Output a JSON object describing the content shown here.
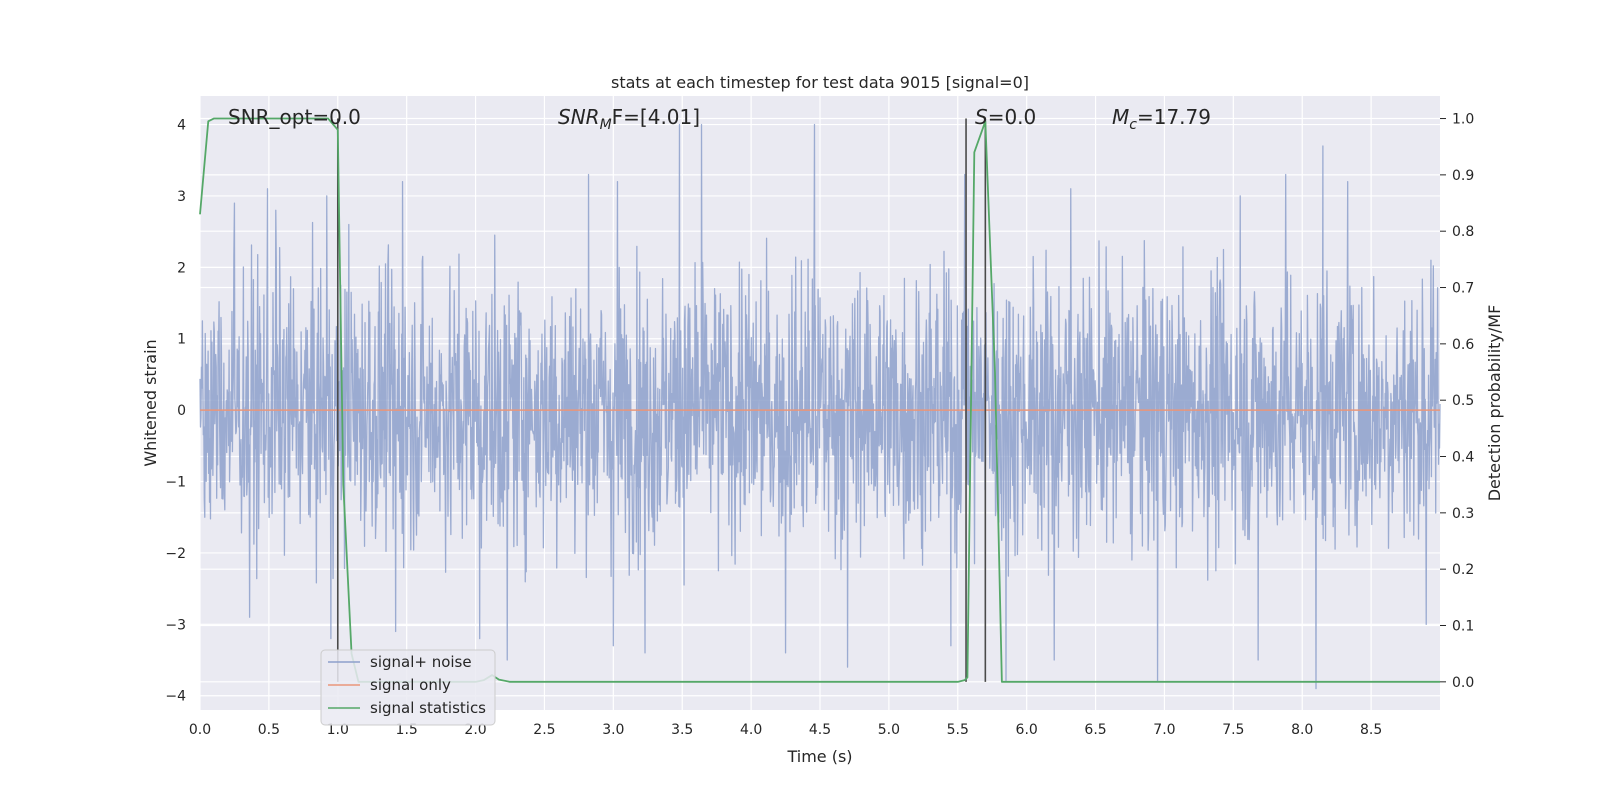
{
  "chart_data": {
    "type": "line",
    "title": "stats at each timestep for test data 9015 [signal=0]",
    "xlabel": "Time (s)",
    "ylabel": "Whitened strain",
    "y2label": "Detection probability/MF",
    "xlim": [
      0.0,
      9.0
    ],
    "ylim": [
      -4.2,
      4.4
    ],
    "y2lim": [
      -0.05,
      1.04
    ],
    "xticks": [
      "0.0",
      "0.5",
      "1.0",
      "1.5",
      "2.0",
      "2.5",
      "3.0",
      "3.5",
      "4.0",
      "4.5",
      "5.0",
      "5.5",
      "6.0",
      "6.5",
      "7.0",
      "7.5",
      "8.0",
      "8.5"
    ],
    "yticks": [
      "4",
      "3",
      "2",
      "1",
      "0",
      "−1",
      "−2",
      "−3",
      "−4"
    ],
    "y2ticks": [
      "1.0",
      "0.9",
      "0.8",
      "0.7",
      "0.6",
      "0.5",
      "0.4",
      "0.3",
      "0.2",
      "0.1",
      "0.0"
    ],
    "grid": true,
    "legend": {
      "position": "lower-left",
      "entries": [
        {
          "label": "signal+ noise",
          "color": "#8da0cb"
        },
        {
          "label": "signal only",
          "color": "#e9967a"
        },
        {
          "label": "signal statistics",
          "color": "#55a868"
        }
      ]
    },
    "annotations": {
      "snr_opt": "SNR_opt=0.0",
      "snr_mf_base": "SNR",
      "snr_mf_sub": "M",
      "snr_mf_rest": "F=[4.01]",
      "s_italic": "S",
      "s_rest": "=0.0",
      "mc_base": "M",
      "mc_sub": "c",
      "mc_rest": "=17.79"
    },
    "series": [
      {
        "name": "signal+ noise",
        "kind": "whitened-noise",
        "color": "#8da0cb",
        "typical_range": [
          -2.2,
          2.2
        ],
        "peak_range": [
          -3.9,
          4.0
        ],
        "peaks": [
          [
            0.25,
            2.9
          ],
          [
            0.49,
            3.1
          ],
          [
            0.55,
            2.8
          ],
          [
            0.92,
            3.0
          ],
          [
            1.08,
            2.6
          ],
          [
            1.47,
            3.2
          ],
          [
            2.82,
            3.3
          ],
          [
            3.03,
            3.2
          ],
          [
            3.48,
            4.0
          ],
          [
            3.64,
            4.0
          ],
          [
            4.46,
            4.0
          ],
          [
            5.55,
            3.3
          ],
          [
            5.85,
            3.2
          ],
          [
            6.32,
            3.1
          ],
          [
            7.55,
            3.0
          ],
          [
            7.88,
            3.3
          ],
          [
            8.15,
            3.7
          ],
          [
            8.33,
            3.2
          ],
          [
            0.36,
            -2.9
          ],
          [
            0.95,
            -3.2
          ],
          [
            1.42,
            -3.1
          ],
          [
            2.03,
            -3.2
          ],
          [
            2.23,
            -3.5
          ],
          [
            3.0,
            -3.3
          ],
          [
            3.23,
            -3.4
          ],
          [
            4.25,
            -3.4
          ],
          [
            4.7,
            -3.6
          ],
          [
            5.45,
            -3.3
          ],
          [
            5.85,
            -3.8
          ],
          [
            6.2,
            -3.5
          ],
          [
            6.95,
            -3.8
          ],
          [
            7.68,
            -3.5
          ],
          [
            8.1,
            -3.9
          ],
          [
            8.9,
            -3.0
          ]
        ]
      },
      {
        "name": "signal only",
        "color": "#e9967a",
        "x": [
          0.0,
          9.0
        ],
        "y": [
          0.0,
          0.0
        ]
      },
      {
        "name": "signal statistics",
        "axis": "right",
        "color": "#55a868",
        "x": [
          0.0,
          0.06,
          0.1,
          0.15,
          0.5,
          0.93,
          1.0,
          1.04,
          1.1,
          1.15,
          1.5,
          2.0,
          2.06,
          2.12,
          2.17,
          2.25,
          5.5,
          5.55,
          5.57,
          5.62,
          5.7,
          5.77,
          5.82,
          6.0,
          9.0
        ],
        "y": [
          0.83,
          0.995,
          1.0,
          1.0,
          1.0,
          1.0,
          0.98,
          0.35,
          0.05,
          0.0,
          0.0,
          0.0,
          0.003,
          0.012,
          0.004,
          0.0,
          0.0,
          0.003,
          0.008,
          0.94,
          0.995,
          0.55,
          0.0,
          0.0,
          0.0
        ]
      }
    ],
    "vertical_markers_s": [
      1.0,
      5.56,
      5.7
    ]
  }
}
